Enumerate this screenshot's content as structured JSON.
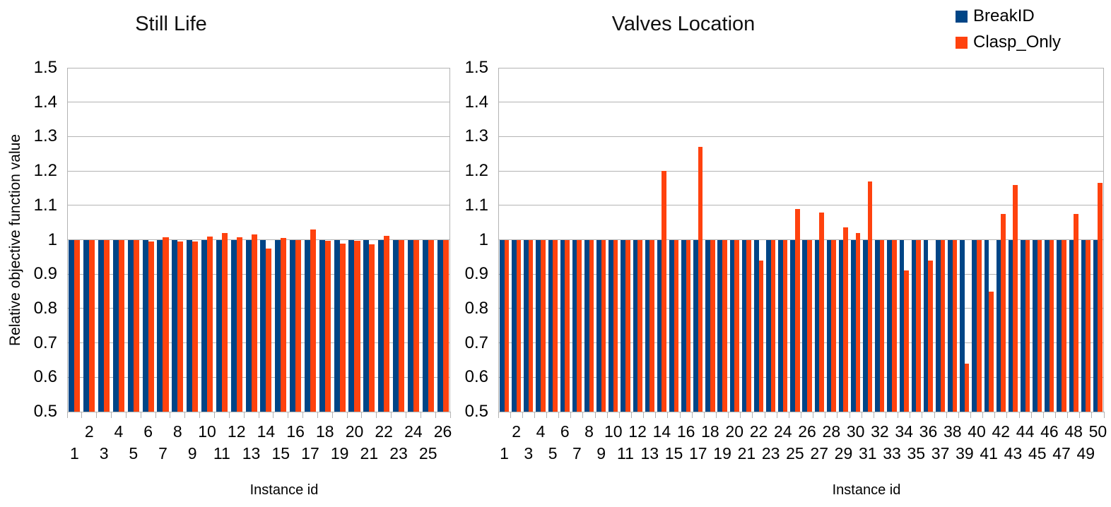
{
  "legend": {
    "items": [
      {
        "label": "BreakID",
        "color": "#004586"
      },
      {
        "label": "Clasp_Only",
        "color": "#FF420E"
      }
    ]
  },
  "chart_data": [
    {
      "type": "bar",
      "title": "Still Life",
      "xlabel": "Instance id",
      "ylabel": "Relative objective function value",
      "ylim": [
        0.5,
        1.5
      ],
      "ytick_labels": [
        "1.5",
        "1.4",
        "1.3",
        "1.2",
        "1.1",
        "1",
        "0.9",
        "0.8",
        "0.7",
        "0.6",
        "0.5"
      ],
      "grid": true,
      "legend_position": "top-right",
      "categories": [
        1,
        2,
        3,
        4,
        5,
        6,
        7,
        8,
        9,
        10,
        11,
        12,
        13,
        14,
        15,
        16,
        17,
        18,
        19,
        20,
        21,
        22,
        23,
        24,
        25,
        26
      ],
      "series": [
        {
          "name": "BreakID",
          "color": "#004586",
          "values": [
            1,
            1,
            1,
            1,
            1,
            1,
            1,
            1,
            1,
            1,
            1,
            1,
            1,
            1,
            1,
            1,
            1,
            1,
            1,
            1,
            1,
            1,
            1,
            1,
            1,
            1
          ]
        },
        {
          "name": "Clasp_Only",
          "color": "#FF420E",
          "values": [
            1,
            1,
            1,
            1,
            1,
            0.995,
            1.008,
            0.995,
            0.995,
            1.01,
            1.02,
            1.007,
            1.015,
            0.975,
            1.005,
            1,
            1.03,
            0.997,
            0.988,
            0.996,
            0.987,
            1.012,
            1,
            1,
            1,
            1
          ]
        }
      ]
    },
    {
      "type": "bar",
      "title": "Valves Location",
      "xlabel": "Instance id",
      "ylabel": "",
      "ylim": [
        0.5,
        1.5
      ],
      "ytick_labels": [
        "1.5",
        "1.4",
        "1.3",
        "1.2",
        "1.1",
        "1",
        "0.9",
        "0.8",
        "0.7",
        "0.6",
        "0.5"
      ],
      "grid": true,
      "legend_position": "top-right",
      "categories": [
        1,
        2,
        3,
        4,
        5,
        6,
        7,
        8,
        9,
        10,
        11,
        12,
        13,
        14,
        15,
        16,
        17,
        18,
        19,
        20,
        21,
        22,
        23,
        24,
        25,
        26,
        27,
        28,
        29,
        30,
        31,
        32,
        33,
        34,
        35,
        36,
        37,
        38,
        39,
        40,
        41,
        42,
        43,
        44,
        45,
        46,
        47,
        48,
        49,
        50
      ],
      "series": [
        {
          "name": "BreakID",
          "color": "#004586",
          "values": [
            1,
            1,
            1,
            1,
            1,
            1,
            1,
            1,
            1,
            1,
            1,
            1,
            1,
            1,
            1,
            1,
            1,
            1,
            1,
            1,
            1,
            1,
            1,
            1,
            1,
            1,
            1,
            1,
            1,
            1,
            1,
            1,
            1,
            1,
            1,
            1,
            1,
            1,
            1,
            1,
            1,
            1,
            1,
            1,
            1,
            1,
            1,
            1,
            1,
            1
          ]
        },
        {
          "name": "Clasp_Only",
          "color": "#FF420E",
          "values": [
            1,
            1,
            1,
            1,
            1,
            1,
            1,
            1,
            1,
            1,
            1,
            1,
            1,
            1.2,
            1,
            1,
            1.27,
            1,
            1,
            1,
            1,
            0.94,
            1,
            1,
            1.09,
            1,
            1.08,
            1,
            1.035,
            1.02,
            1.17,
            1,
            1,
            0.91,
            1,
            0.94,
            1,
            1,
            0.64,
            1,
            0.85,
            1.075,
            1.16,
            1,
            1,
            1,
            1,
            1.075,
            1,
            1.165
          ]
        }
      ]
    }
  ]
}
